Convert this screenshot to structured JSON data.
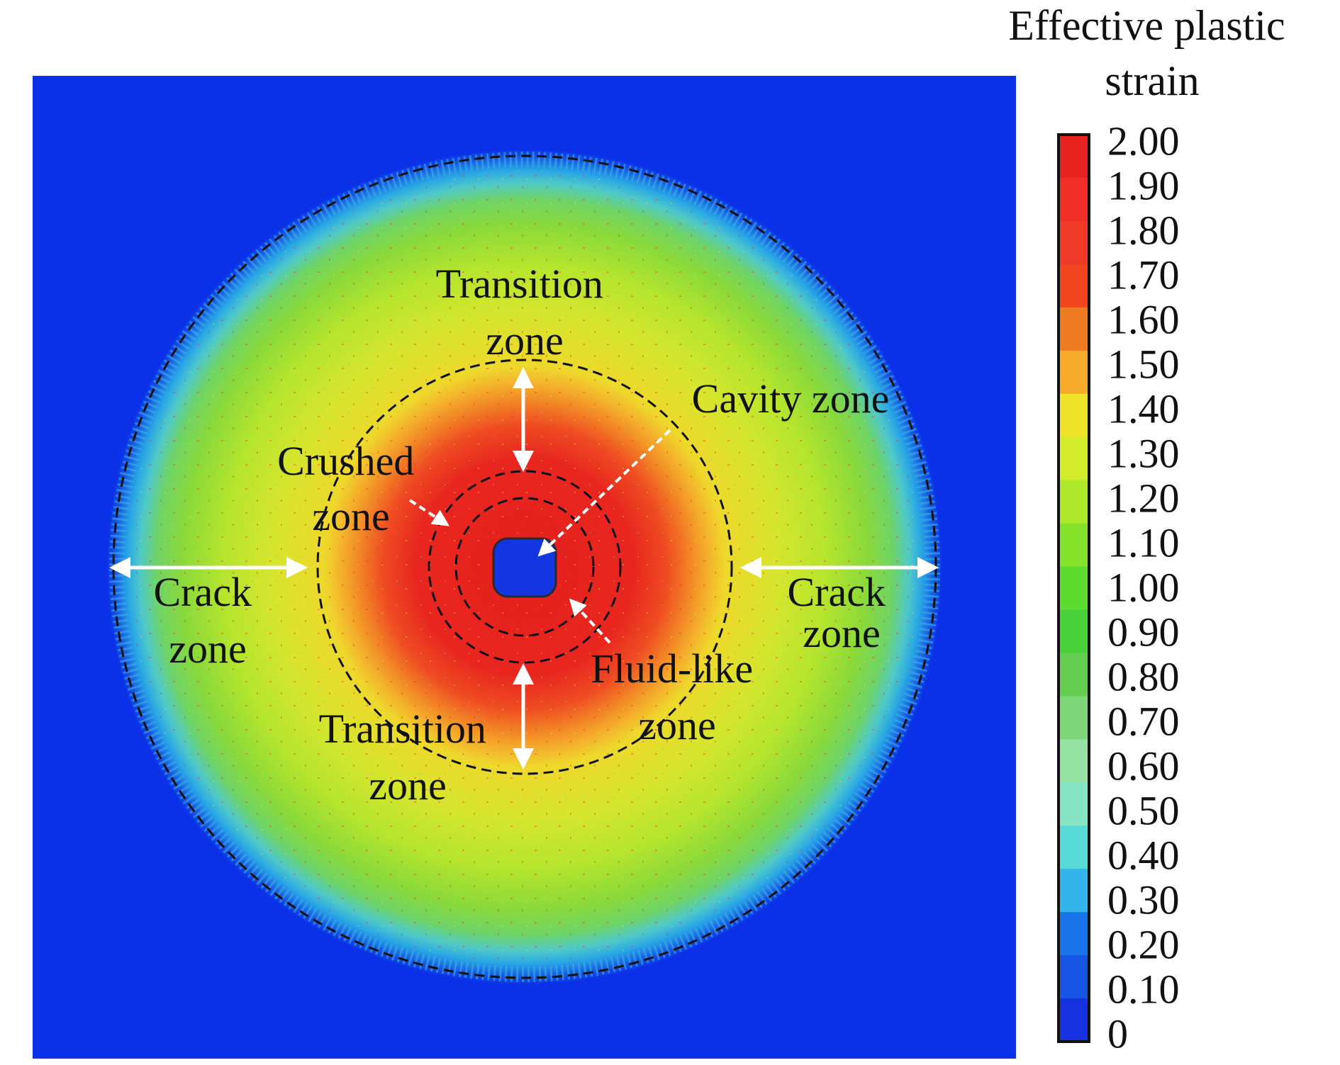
{
  "figure": {
    "zone_labels": [
      {
        "id": "transition-top",
        "lines": [
          "Transition",
          "zone"
        ]
      },
      {
        "id": "cavity",
        "lines": [
          "Cavity zone"
        ]
      },
      {
        "id": "crushed",
        "lines": [
          "Crushed",
          "zone"
        ]
      },
      {
        "id": "crack-left",
        "lines": [
          "Crack",
          "zone"
        ]
      },
      {
        "id": "crack-right",
        "lines": [
          "Crack",
          "zone"
        ]
      },
      {
        "id": "fluid-like",
        "lines": [
          "Fluid-like",
          "zone"
        ]
      },
      {
        "id": "transition-bottom",
        "lines": [
          "Transition",
          "zone"
        ]
      }
    ],
    "colorbar": {
      "title_lines": [
        "Effective plastic",
        "strain"
      ],
      "ticks": [
        "2.00",
        "1.90",
        "1.80",
        "1.70",
        "1.60",
        "1.50",
        "1.40",
        "1.30",
        "1.20",
        "1.10",
        "1.00",
        "0.90",
        "0.80",
        "0.70",
        "0.60",
        "0.50",
        "0.40",
        "0.30",
        "0.20",
        "0.10",
        "0"
      ],
      "colors_top_to_bottom": [
        "#e8231f",
        "#f02e27",
        "#ee3a26",
        "#f1441f",
        "#ee7a22",
        "#f6ab2a",
        "#efe32a",
        "#d2ec2c",
        "#aee82a",
        "#84e22b",
        "#5ddc2f",
        "#49d13a",
        "#62cd4e",
        "#7dd678",
        "#95e2a2",
        "#86e5c5",
        "#57d9d7",
        "#33b4ea",
        "#1a74e9",
        "#1654e4",
        "#1632e0"
      ],
      "background_color": "#0a30e8"
    }
  }
}
